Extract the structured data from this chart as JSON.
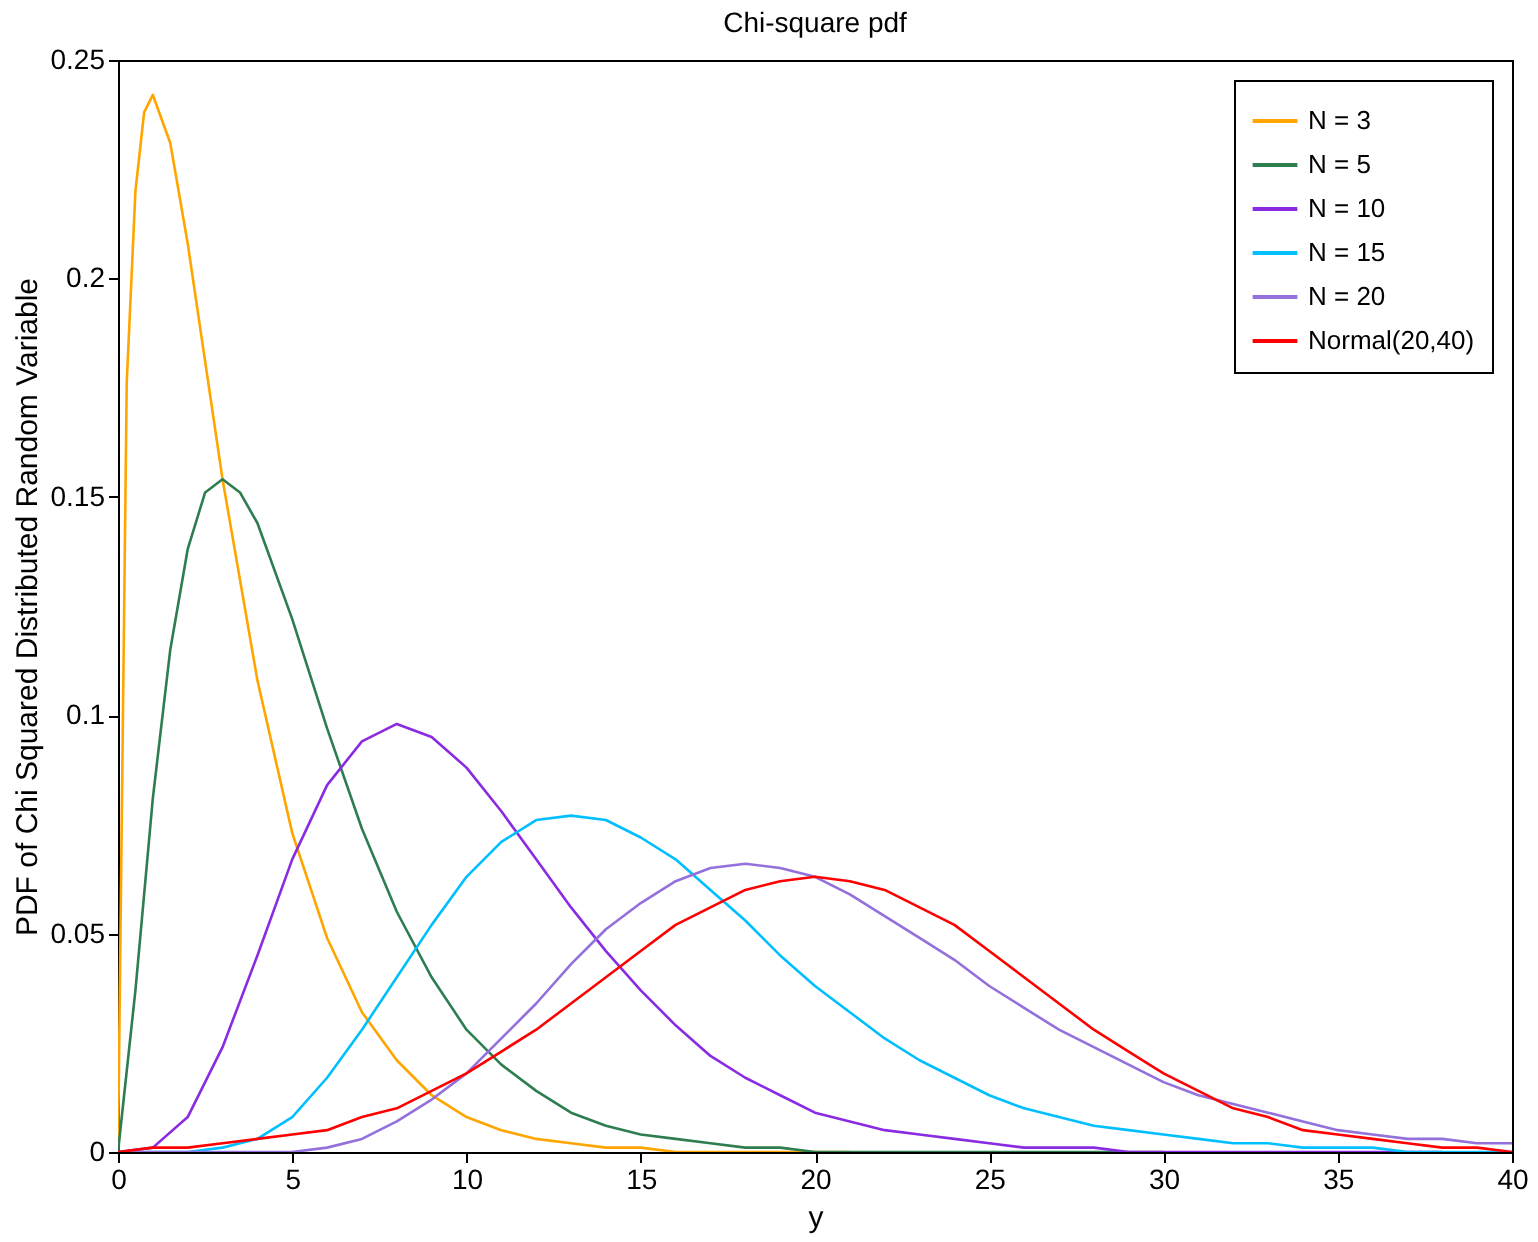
{
  "chart_data": {
    "type": "line",
    "title": "Chi-square pdf",
    "xlabel": "y",
    "ylabel": "PDF of Chi Squared Distributed Random Variable",
    "x": [
      0,
      1,
      2,
      3,
      4,
      5,
      6,
      7,
      8,
      9,
      10,
      11,
      12,
      13,
      14,
      15,
      16,
      17,
      18,
      19,
      20,
      21,
      22,
      23,
      24,
      25,
      26,
      27,
      28,
      29,
      30,
      31,
      32,
      33,
      34,
      35,
      36,
      37,
      38,
      39,
      40
    ],
    "series": [
      {
        "name": "N = 3",
        "color": "#ffa500",
        "x": [
          0,
          0.25,
          0.5,
          0.75,
          1,
          1.5,
          2,
          2.5,
          3,
          4,
          5,
          6,
          7,
          8,
          9,
          10,
          11,
          12,
          13,
          14,
          15,
          16,
          17,
          18,
          19,
          20,
          21
        ],
        "values": [
          0,
          0.176,
          0.22,
          0.238,
          0.242,
          0.231,
          0.208,
          0.181,
          0.154,
          0.108,
          0.073,
          0.049,
          0.032,
          0.021,
          0.013,
          0.008,
          0.005,
          0.003,
          0.002,
          0.001,
          0.001,
          0,
          0,
          0,
          0,
          0,
          0
        ]
      },
      {
        "name": "N = 5",
        "color": "#2e7d4f",
        "x": [
          0,
          0.5,
          1,
          1.5,
          2,
          2.5,
          3,
          3.5,
          4,
          5,
          6,
          7,
          8,
          9,
          10,
          11,
          12,
          13,
          14,
          15,
          16,
          17,
          18,
          19,
          20,
          21,
          22,
          23,
          24,
          25,
          26,
          27,
          28,
          29,
          30
        ],
        "values": [
          0,
          0.037,
          0.081,
          0.115,
          0.138,
          0.151,
          0.154,
          0.151,
          0.144,
          0.122,
          0.097,
          0.074,
          0.055,
          0.04,
          0.028,
          0.02,
          0.014,
          0.009,
          0.006,
          0.004,
          0.003,
          0.002,
          0.001,
          0.001,
          0,
          0,
          0,
          0,
          0,
          0,
          0,
          0,
          0,
          0,
          0
        ]
      },
      {
        "name": "N = 10",
        "color": "#8a2be2",
        "x": [
          0,
          1,
          2,
          3,
          4,
          5,
          6,
          7,
          8,
          9,
          10,
          11,
          12,
          13,
          14,
          15,
          16,
          17,
          18,
          19,
          20,
          21,
          22,
          23,
          24,
          25,
          26,
          27,
          28,
          29,
          30,
          31,
          32,
          33,
          34,
          35,
          36,
          37,
          38
        ],
        "values": [
          0,
          0.001,
          0.008,
          0.024,
          0.045,
          0.067,
          0.084,
          0.094,
          0.098,
          0.095,
          0.088,
          0.078,
          0.067,
          0.056,
          0.046,
          0.037,
          0.029,
          0.022,
          0.017,
          0.013,
          0.009,
          0.007,
          0.005,
          0.004,
          0.003,
          0.002,
          0.001,
          0.001,
          0.001,
          0,
          0,
          0,
          0,
          0,
          0,
          0,
          0,
          0,
          0
        ]
      },
      {
        "name": "N = 15",
        "color": "#00bfff",
        "values": [
          0,
          0,
          0,
          0.001,
          0.003,
          0.008,
          0.017,
          0.028,
          0.04,
          0.052,
          0.063,
          0.071,
          0.076,
          0.077,
          0.076,
          0.072,
          0.067,
          0.06,
          0.053,
          0.045,
          0.038,
          0.032,
          0.026,
          0.021,
          0.017,
          0.013,
          0.01,
          0.008,
          0.006,
          0.005,
          0.004,
          0.003,
          0.002,
          0.002,
          0.001,
          0.001,
          0.001,
          0,
          0,
          0,
          0
        ]
      },
      {
        "name": "N = 20",
        "color": "#9370db",
        "values": [
          0,
          0,
          0,
          0,
          0,
          0,
          0.001,
          0.003,
          0.007,
          0.012,
          0.018,
          0.026,
          0.034,
          0.043,
          0.051,
          0.057,
          0.062,
          0.065,
          0.066,
          0.065,
          0.063,
          0.059,
          0.054,
          0.049,
          0.044,
          0.038,
          0.033,
          0.028,
          0.024,
          0.02,
          0.016,
          0.013,
          0.011,
          0.009,
          0.007,
          0.005,
          0.004,
          0.003,
          0.003,
          0.002,
          0.002
        ]
      },
      {
        "name": "Normal(20,40)",
        "color": "#ff0000",
        "values": [
          0,
          0.001,
          0.001,
          0.002,
          0.003,
          0.004,
          0.005,
          0.008,
          0.01,
          0.014,
          0.018,
          0.023,
          0.028,
          0.034,
          0.04,
          0.046,
          0.052,
          0.056,
          0.06,
          0.062,
          0.063,
          0.062,
          0.06,
          0.056,
          0.052,
          0.046,
          0.04,
          0.034,
          0.028,
          0.023,
          0.018,
          0.014,
          0.01,
          0.008,
          0.005,
          0.004,
          0.003,
          0.002,
          0.001,
          0.001,
          0
        ]
      }
    ],
    "xlim": [
      0,
      40
    ],
    "xticks": [
      0,
      5,
      10,
      15,
      20,
      25,
      30,
      35,
      40
    ],
    "ylim": [
      0,
      0.25
    ],
    "yticks": [
      {
        "value": 0,
        "label": "0"
      },
      0.05,
      {
        "value": 0.1,
        "label": "0.1"
      },
      0.15,
      {
        "value": 0.2,
        "label": "0.2"
      },
      0.25
    ],
    "legend": "top right",
    "grid": false
  }
}
